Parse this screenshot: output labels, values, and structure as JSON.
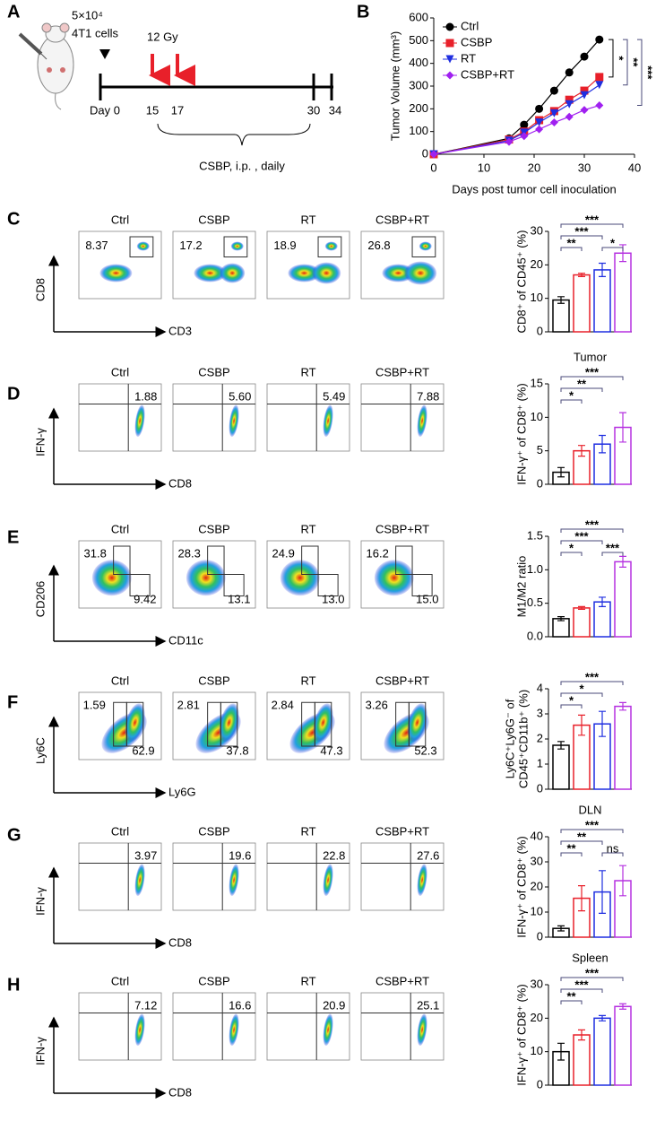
{
  "panel_labels": [
    "A",
    "B",
    "C",
    "D",
    "E",
    "F",
    "G",
    "H"
  ],
  "schematic": {
    "cells": "5×10⁴",
    "cell_line": "4T1 cells",
    "dose": "12 Gy",
    "days": [
      "Day 0",
      "15",
      "17",
      "30",
      "34"
    ],
    "treatment": "CSBP, i.p. , daily"
  },
  "chart_data": [
    {
      "type": "line",
      "x_label": "Days post tumor cell inoculation",
      "y_label": "Tumor Volume (mm³)",
      "x": [
        0,
        15,
        18,
        21,
        24,
        27,
        30,
        33
      ],
      "series": [
        {
          "name": "Ctrl",
          "color": "#000000",
          "marker": "circle",
          "values": [
            0,
            70,
            130,
            200,
            280,
            360,
            430,
            505
          ]
        },
        {
          "name": "CSBP",
          "color": "#e8202a",
          "marker": "square",
          "values": [
            0,
            65,
            100,
            150,
            190,
            240,
            280,
            340
          ]
        },
        {
          "name": "RT",
          "color": "#1f2ee0",
          "marker": "triangle",
          "values": [
            0,
            60,
            95,
            140,
            180,
            220,
            260,
            305
          ]
        },
        {
          "name": "CSBP+RT",
          "color": "#a020f0",
          "marker": "diamond",
          "values": [
            0,
            55,
            80,
            110,
            140,
            165,
            195,
            215
          ]
        }
      ],
      "xlim": [
        0,
        40
      ],
      "xticks": [
        0,
        10,
        20,
        30,
        40
      ],
      "ylim": [
        0,
        600
      ],
      "yticks": [
        0,
        100,
        200,
        300,
        400,
        500,
        600
      ],
      "annotations": [
        {
          "text": "*",
          "between": [
            0,
            1
          ]
        },
        {
          "text": "**",
          "between": [
            0,
            2
          ]
        },
        {
          "text": "***",
          "between": [
            0,
            3
          ]
        }
      ]
    },
    {
      "type": "bar",
      "y_label": "CD8⁺ of CD45⁺ (%)",
      "values": [
        9.5,
        17,
        18.5,
        23.5
      ],
      "errors": [
        1,
        0.5,
        2,
        2.5
      ],
      "colors": [
        "#000000",
        "#e8202a",
        "#1f2ee0",
        "#b530e0"
      ],
      "ylim": [
        0,
        30
      ],
      "yticks": [
        0,
        10,
        20,
        30
      ],
      "annotations": [
        {
          "text": "**",
          "between": [
            0,
            1
          ]
        },
        {
          "text": "***",
          "between": [
            0,
            2
          ]
        },
        {
          "text": "*",
          "between": [
            2,
            3
          ]
        },
        {
          "text": "***",
          "between": [
            0,
            3
          ]
        }
      ]
    },
    {
      "type": "bar",
      "title": "Tumor",
      "y_label": "IFN-γ⁺ of CD8⁺ (%)",
      "values": [
        1.8,
        5,
        6,
        8.5
      ],
      "errors": [
        0.7,
        0.8,
        1.3,
        2.2
      ],
      "colors": [
        "#000000",
        "#e8202a",
        "#1f2ee0",
        "#b530e0"
      ],
      "ylim": [
        0,
        15
      ],
      "yticks": [
        0,
        5,
        10,
        15
      ],
      "annotations": [
        {
          "text": "*",
          "between": [
            0,
            1
          ]
        },
        {
          "text": "**",
          "between": [
            0,
            2
          ]
        },
        {
          "text": "***",
          "between": [
            0,
            3
          ]
        }
      ]
    },
    {
      "type": "bar",
      "y_label": "M1/M2 ratio",
      "values": [
        0.27,
        0.43,
        0.52,
        1.12
      ],
      "errors": [
        0.03,
        0.02,
        0.07,
        0.08
      ],
      "colors": [
        "#000000",
        "#e8202a",
        "#1f2ee0",
        "#b530e0"
      ],
      "ylim": [
        0,
        1.5
      ],
      "yticks": [
        {
          "value": 0,
          "label": "0.0"
        },
        0.5,
        {
          "value": 1,
          "label": "1.0"
        },
        1.5
      ],
      "annotations": [
        {
          "text": "*",
          "between": [
            0,
            1
          ]
        },
        {
          "text": "***",
          "between": [
            0,
            2
          ]
        },
        {
          "text": "***",
          "between": [
            2,
            3
          ]
        },
        {
          "text": "***",
          "between": [
            0,
            3
          ]
        }
      ]
    },
    {
      "type": "bar",
      "y_label": [
        "Ly6C⁺Ly6G⁻ of",
        "CD45⁺CD11b⁺ (%)"
      ],
      "values": [
        1.75,
        2.55,
        2.6,
        3.3
      ],
      "errors": [
        0.15,
        0.4,
        0.5,
        0.15
      ],
      "colors": [
        "#000000",
        "#e8202a",
        "#1f2ee0",
        "#b530e0"
      ],
      "ylim": [
        0,
        4
      ],
      "yticks": [
        0,
        1,
        2,
        3,
        4
      ],
      "annotations": [
        {
          "text": "*",
          "between": [
            0,
            1
          ]
        },
        {
          "text": "*",
          "between": [
            0,
            2
          ]
        },
        {
          "text": "***",
          "between": [
            0,
            3
          ]
        }
      ]
    },
    {
      "type": "bar",
      "title": "DLN",
      "y_label": "IFN-γ⁺ of CD8⁺ (%)",
      "values": [
        3.5,
        15.5,
        18,
        22.5
      ],
      "errors": [
        1,
        5,
        8.5,
        6
      ],
      "colors": [
        "#000000",
        "#e8202a",
        "#1f2ee0",
        "#b530e0"
      ],
      "ylim": [
        0,
        40
      ],
      "yticks": [
        0,
        10,
        20,
        30,
        40
      ],
      "annotations": [
        {
          "text": "**",
          "between": [
            0,
            1
          ]
        },
        {
          "text": "**",
          "between": [
            0,
            2
          ]
        },
        {
          "text": "ns",
          "between": [
            2,
            3
          ]
        },
        {
          "text": "***",
          "between": [
            0,
            3
          ]
        }
      ]
    },
    {
      "type": "bar",
      "title": "Spleen",
      "y_label": "IFN-γ⁺ of CD8⁺ (%)",
      "values": [
        10,
        15,
        20,
        23.5
      ],
      "errors": [
        2.5,
        1.5,
        0.8,
        0.8
      ],
      "colors": [
        "#000000",
        "#e8202a",
        "#1f2ee0",
        "#b530e0"
      ],
      "ylim": [
        0,
        30
      ],
      "yticks": [
        0,
        10,
        20,
        30
      ],
      "annotations": [
        {
          "text": "**",
          "between": [
            0,
            1
          ]
        },
        {
          "text": "***",
          "between": [
            0,
            2
          ]
        },
        {
          "text": "***",
          "between": [
            0,
            3
          ]
        }
      ]
    }
  ],
  "flow": [
    {
      "x_label": "CD3",
      "y_label": "CD8",
      "groups": [
        "Ctrl",
        "CSBP",
        "RT",
        "CSBP+RT"
      ],
      "gates": [
        [
          "8.37"
        ],
        [
          "17.2"
        ],
        [
          "18.9"
        ],
        [
          "26.8"
        ]
      ]
    },
    {
      "x_label": "CD8",
      "y_label": "IFN-γ",
      "groups": [
        "Ctrl",
        "CSBP",
        "RT",
        "CSBP+RT"
      ],
      "gates": [
        [
          "1.88"
        ],
        [
          "5.60"
        ],
        [
          "5.49"
        ],
        [
          "7.88"
        ]
      ]
    },
    {
      "x_label": "CD11c",
      "y_label": "CD206",
      "groups": [
        "Ctrl",
        "CSBP",
        "RT",
        "CSBP+RT"
      ],
      "gates": [
        [
          "31.8",
          "9.42"
        ],
        [
          "28.3",
          "13.1"
        ],
        [
          "24.9",
          "13.0"
        ],
        [
          "16.2",
          "15.0"
        ]
      ]
    },
    {
      "x_label": "Ly6G",
      "y_label": "Ly6C",
      "groups": [
        "Ctrl",
        "CSBP",
        "RT",
        "CSBP+RT"
      ],
      "gates": [
        [
          "1.59",
          "62.9"
        ],
        [
          "2.81",
          "37.8"
        ],
        [
          "2.84",
          "47.3"
        ],
        [
          "3.26",
          "52.3"
        ]
      ]
    },
    {
      "x_label": "CD8",
      "y_label": "IFN-γ",
      "groups": [
        "Ctrl",
        "CSBP",
        "RT",
        "CSBP+RT"
      ],
      "gates": [
        [
          "3.97"
        ],
        [
          "19.6"
        ],
        [
          "22.8"
        ],
        [
          "27.6"
        ]
      ]
    },
    {
      "x_label": "CD8",
      "y_label": "IFN-γ",
      "groups": [
        "Ctrl",
        "CSBP",
        "RT",
        "CSBP+RT"
      ],
      "gates": [
        [
          "7.12"
        ],
        [
          "16.6"
        ],
        [
          "20.9"
        ],
        [
          "25.1"
        ]
      ]
    }
  ]
}
